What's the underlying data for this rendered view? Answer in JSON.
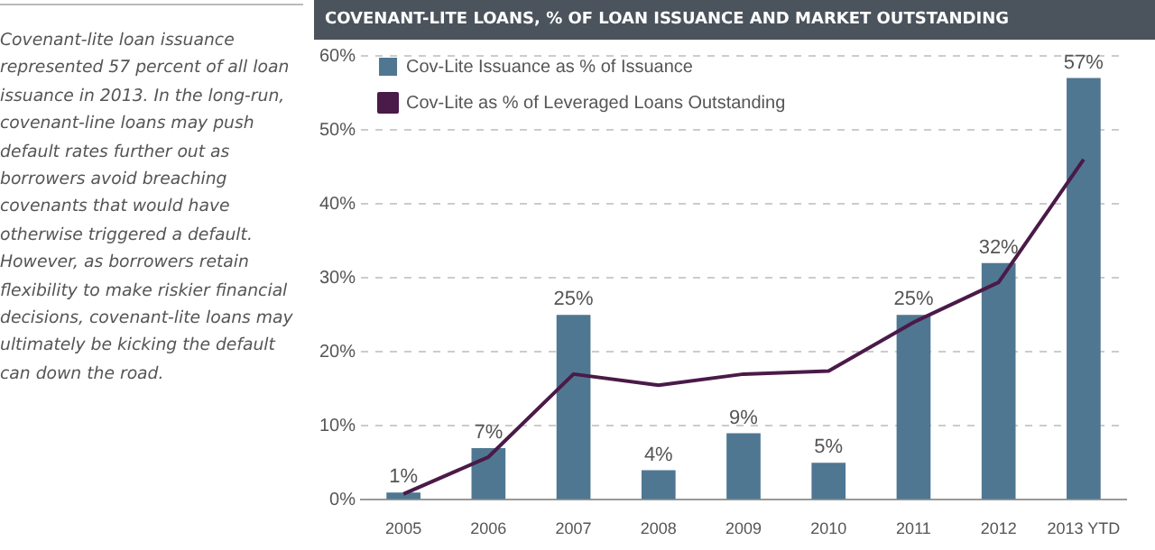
{
  "chart_data": {
    "type": "bar",
    "title": "COVENANT-LITE LOANS, % OF LOAN ISSUANCE AND MARKET OUTSTANDING",
    "annotations": [
      "Covenant-lite loan issuance represented 57 percent of all loan issuance in 2013. In the long-run, covenant-line loans may push default rates further out as borrowers avoid breaching covenants that would have otherwise triggered a default. However, as borrowers retain flexibility to make riskier financial decisions, covenant-lite loans may ultimately be kicking the default can down the road."
    ],
    "categories": [
      "2005",
      "2006",
      "2007",
      "2008",
      "2009",
      "2010",
      "2011",
      "2012",
      "2013 YTD"
    ],
    "series": [
      {
        "name": "Cov-Lite Issuance as % of Issuance",
        "color": "#4f7792",
        "values": [
          1,
          7,
          25,
          4,
          9,
          5,
          25,
          32,
          57
        ],
        "value_labels": [
          "1%",
          "7%",
          "25%",
          "4%",
          "9%",
          "5%",
          "25%",
          "32%",
          "57%"
        ]
      },
      {
        "name": "Cov-Lite as % of Leveraged Loans Outstanding",
        "type": "line",
        "color": "#4a1a48",
        "values": [
          0.8,
          5.8,
          17,
          15.5,
          17,
          17.4,
          24,
          29.4,
          46
        ]
      }
    ],
    "ylim": [
      0,
      60
    ],
    "yticks": [
      {
        "value": 0,
        "label": "0%"
      },
      {
        "value": 10,
        "label": "10%"
      },
      {
        "value": 20,
        "label": "20%"
      },
      {
        "value": 30,
        "label": "30%"
      },
      {
        "value": 40,
        "label": "40%"
      },
      {
        "value": 50,
        "label": "50%"
      },
      {
        "value": 60,
        "label": "60%"
      }
    ],
    "grid": "y",
    "legend": "top left",
    "marker": "none"
  }
}
